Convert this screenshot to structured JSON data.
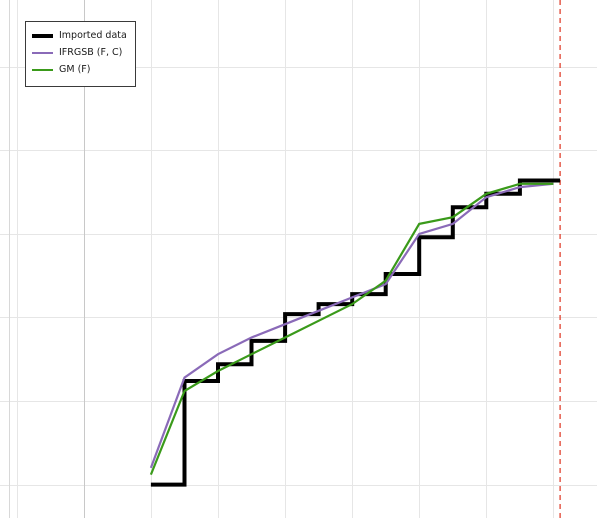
{
  "chart_data": {
    "type": "line",
    "legend_position": "top-left",
    "grid": true,
    "xlim": [
      -4.5,
      13.3
    ],
    "ylim": [
      -0.1,
      1.45
    ],
    "series": [
      {
        "name": "Imported data",
        "color": "#000000",
        "line_style": "step",
        "x": [
          0,
          1,
          1,
          2,
          2,
          3,
          3,
          4,
          4,
          5,
          5,
          6,
          6,
          7,
          7,
          8,
          8,
          9,
          9,
          10,
          10,
          11,
          11,
          12.2
        ],
        "y": [
          0,
          0,
          0.31,
          0.31,
          0.36,
          0.36,
          0.43,
          0.43,
          0.51,
          0.51,
          0.54,
          0.54,
          0.57,
          0.57,
          0.63,
          0.63,
          0.74,
          0.74,
          0.83,
          0.83,
          0.87,
          0.87,
          0.91,
          0.91
        ]
      },
      {
        "name": "IFRGSB (F, C)",
        "color": "#8a6ab8",
        "line_style": "solid",
        "x": [
          0,
          1,
          2,
          3,
          4,
          5,
          6,
          7,
          8,
          9,
          10,
          11,
          12
        ],
        "y": [
          0.05,
          0.32,
          0.39,
          0.44,
          0.48,
          0.52,
          0.56,
          0.6,
          0.75,
          0.78,
          0.86,
          0.89,
          0.9
        ]
      },
      {
        "name": "GM (F)",
        "color": "#3a9a1a",
        "line_style": "solid",
        "x": [
          0,
          1,
          2,
          3,
          4,
          5,
          6,
          7,
          8,
          9,
          10,
          11,
          12
        ],
        "y": [
          0.03,
          0.28,
          0.34,
          0.39,
          0.44,
          0.49,
          0.54,
          0.61,
          0.78,
          0.8,
          0.87,
          0.9,
          0.9
        ]
      }
    ],
    "reference_lines": [
      {
        "orientation": "vertical",
        "x": 12.2,
        "color": "#e0422f",
        "style": "dashed"
      }
    ]
  }
}
